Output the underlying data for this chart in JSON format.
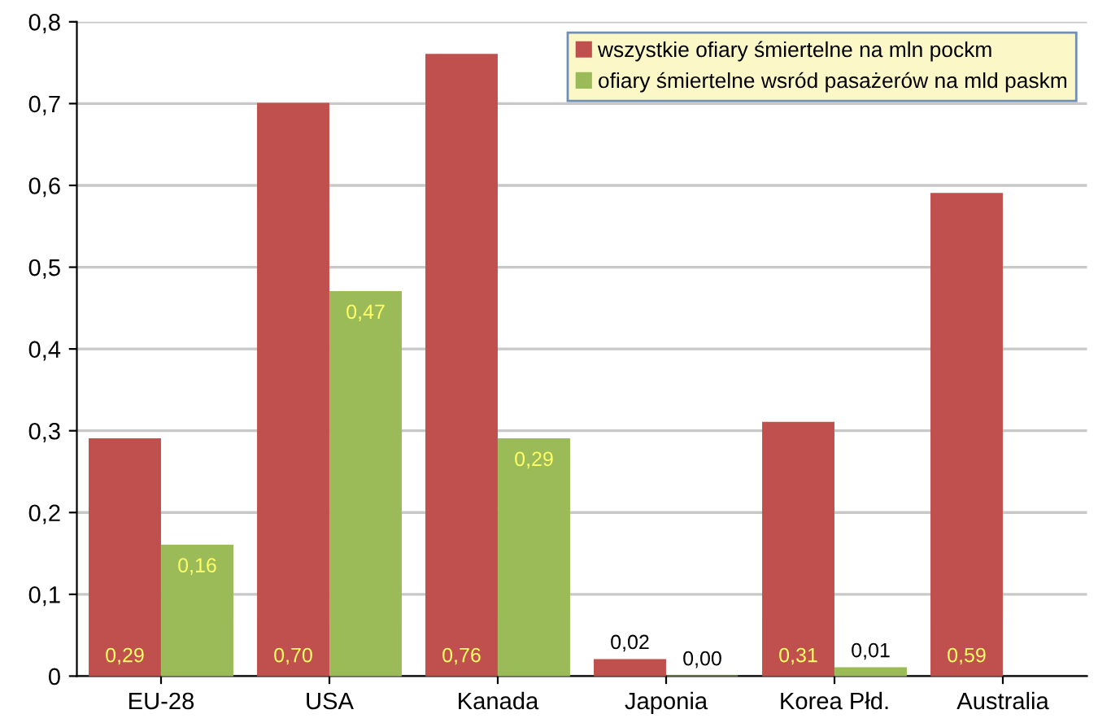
{
  "chart_data": {
    "type": "bar",
    "categories": [
      "EU-28",
      "USA",
      "Kanada",
      "Japonia",
      "Korea Płd.",
      "Australia"
    ],
    "series": [
      {
        "name": "wszystkie ofiary śmiertelne na mln pockm",
        "color": "#c0504d",
        "values": [
          0.29,
          0.7,
          0.76,
          0.02,
          0.31,
          0.59
        ],
        "value_labels": [
          "0,29",
          "0,70",
          "0,76",
          "0,02",
          "0,31",
          "0,59"
        ]
      },
      {
        "name": "ofiary śmiertelne wsród pasażerów na mld paskm",
        "color": "#9bbb59",
        "values": [
          0.16,
          0.47,
          0.29,
          0.0,
          0.01,
          null
        ],
        "value_labels": [
          "0,16",
          "0,47",
          "0,29",
          "0,00",
          "0,01",
          null
        ]
      }
    ],
    "ylim": [
      0,
      0.8
    ],
    "yticks": [
      {
        "value": 0,
        "label": "0"
      },
      {
        "value": 0.1,
        "label": "0,1"
      },
      {
        "value": 0.2,
        "label": "0,2"
      },
      {
        "value": 0.3,
        "label": "0,3"
      },
      {
        "value": 0.4,
        "label": "0,4"
      },
      {
        "value": 0.5,
        "label": "0,5"
      },
      {
        "value": 0.6,
        "label": "0,6"
      },
      {
        "value": 0.7,
        "label": "0,7"
      },
      {
        "value": 0.8,
        "label": "0,8"
      }
    ],
    "grid": "y",
    "legend": "top right"
  }
}
